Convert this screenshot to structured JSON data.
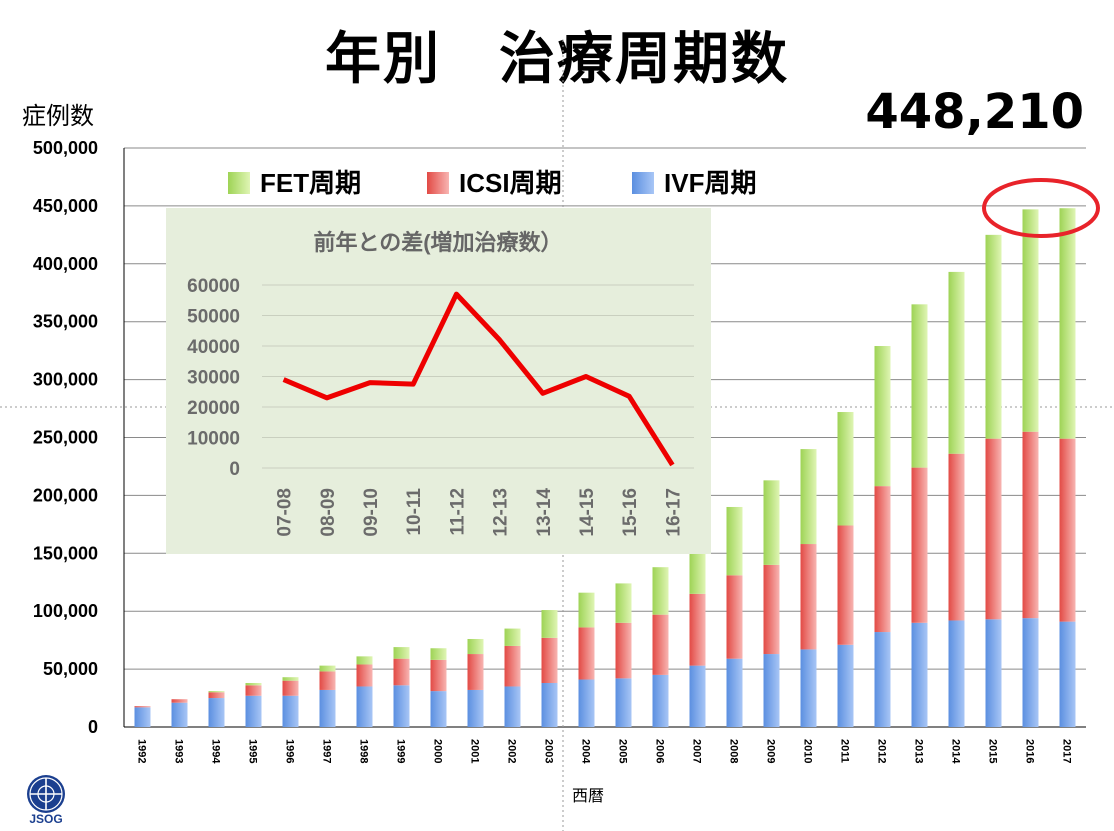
{
  "title": "年別　治療周期数",
  "total_label": "448,210",
  "y_axis_label": "症例数",
  "x_axis_label": "西暦",
  "logo_text": "JSOG",
  "colors": {
    "ivf": "#7ea6e8",
    "icsi": "#ef7c78",
    "fet": "#b9e07a",
    "inset_bg": "#e6eedc",
    "inset_line": "#ee0000",
    "highlight_circle": "#e8232a"
  },
  "chart_data": [
    {
      "type": "bar",
      "stacked": true,
      "title": "",
      "ylabel": "症例数",
      "xlabel": "西暦",
      "ylim": [
        0,
        500000
      ],
      "y_ticks": [
        "0",
        "50,000",
        "100,000",
        "150,000",
        "200,000",
        "250,000",
        "300,000",
        "350,000",
        "400,000",
        "450,000",
        "500,000"
      ],
      "grid": true,
      "legend_position": "top-left",
      "categories": [
        "1992",
        "1993",
        "1994",
        "1995",
        "1996",
        "1997",
        "1998",
        "1999",
        "2000",
        "2001",
        "2002",
        "2003",
        "2004",
        "2005",
        "2006",
        "2007",
        "2008",
        "2009",
        "2010",
        "2011",
        "2012",
        "2013",
        "2014",
        "2015",
        "2016",
        "2017"
      ],
      "series": [
        {
          "name": "IVF周期",
          "color": "#7ea6e8",
          "values": [
            17000,
            21000,
            25000,
            27000,
            27000,
            32000,
            35000,
            36000,
            31000,
            32000,
            35000,
            38000,
            41000,
            42000,
            45000,
            53000,
            59000,
            63000,
            67000,
            71000,
            82000,
            90000,
            92000,
            93000,
            94000,
            91000
          ]
        },
        {
          "name": "ICSI周期",
          "color": "#ef7c78",
          "values": [
            1000,
            3000,
            5000,
            9000,
            13000,
            16000,
            19000,
            23000,
            27000,
            31000,
            35000,
            39000,
            45000,
            48000,
            52000,
            62000,
            72000,
            77000,
            91000,
            103000,
            126000,
            134000,
            144000,
            156000,
            161000,
            158000
          ]
        },
        {
          "name": "FET周期",
          "color": "#b9e07a",
          "values": [
            0,
            0,
            1000,
            2000,
            3000,
            5000,
            7000,
            10000,
            10000,
            13000,
            15000,
            24000,
            30000,
            34000,
            41000,
            40000,
            59000,
            73000,
            82000,
            98000,
            121000,
            141000,
            157000,
            176000,
            192000,
            199000
          ]
        }
      ],
      "annotation": "448,210"
    },
    {
      "type": "line",
      "title": "前年との差(増加治療数）",
      "categories": [
        "07-08",
        "08-09",
        "09-10",
        "10-11",
        "11-12",
        "12-13",
        "13-14",
        "14-15",
        "15-16",
        "16-17"
      ],
      "values": [
        29000,
        23000,
        28000,
        27500,
        57000,
        42000,
        24500,
        30000,
        23500,
        1000
      ],
      "ylim": [
        0,
        60000
      ],
      "y_ticks": [
        "0",
        "10000",
        "20000",
        "30000",
        "40000",
        "50000",
        "60000"
      ],
      "grid": true,
      "color": "#ee0000"
    }
  ]
}
